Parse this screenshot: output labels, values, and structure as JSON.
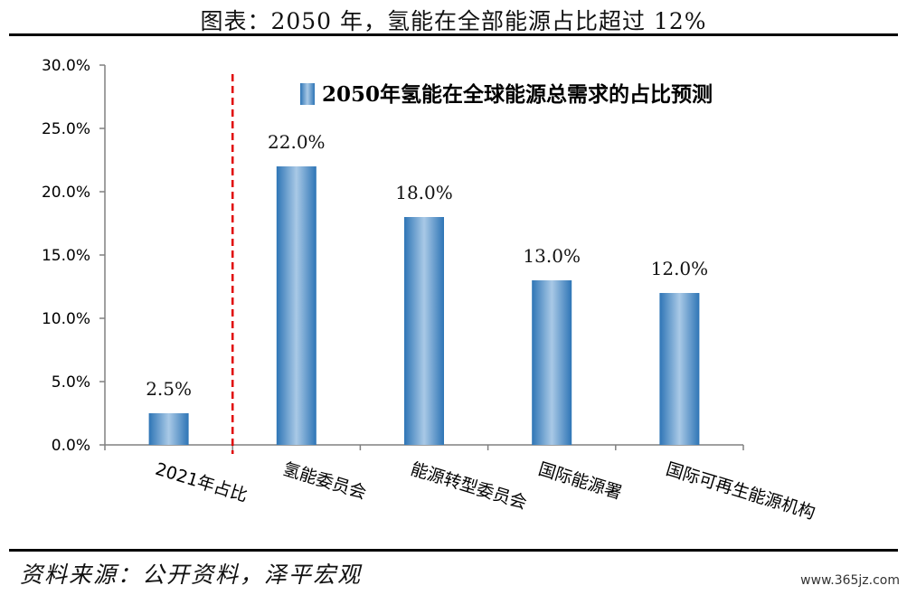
{
  "header": {
    "title": "图表：2050 年，氢能在全部能源占比超过 12%"
  },
  "footer": {
    "source": "资料来源：公开资料，泽平宏观",
    "watermark": "www.365jz.com"
  },
  "chart_data": {
    "type": "bar",
    "title": "",
    "xlabel": "",
    "ylabel": "",
    "categories": [
      "2021年占比",
      "氢能委员会",
      "能源转型委员会",
      "国际能源署",
      "国际可再生能源机构"
    ],
    "series": [
      {
        "name": "2050年氢能在全球能源总需求的占比预测",
        "values": [
          2.5,
          22.0,
          18.0,
          13.0,
          12.0
        ],
        "labels": [
          "2.5%",
          "22.0%",
          "18.0%",
          "13.0%",
          "12.0%"
        ]
      }
    ],
    "ylim": [
      0,
      30
    ],
    "yticks": [
      "0.0%",
      "5.0%",
      "10.0%",
      "15.0%",
      "20.0%",
      "25.0%",
      "30.0%"
    ],
    "legend_position": "top-right",
    "divider": "red dashed line between first and second category",
    "colors": {
      "bar": "#2e75b6",
      "bar_light": "#a9c9e6",
      "divider": "#e00000"
    }
  }
}
